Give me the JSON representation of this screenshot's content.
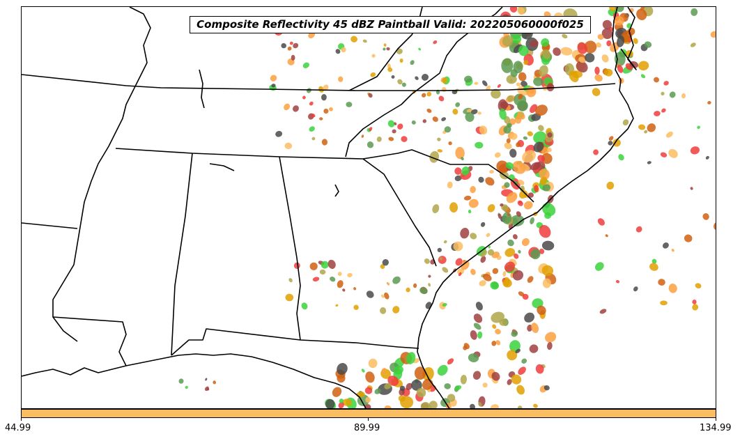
{
  "title": "Composite Reflectivity 45 dBZ Paintball Valid: 202205060000f025",
  "colorbar": {
    "color": "#fbbd61",
    "tick_labels": [
      "44.99",
      "89.99",
      "134.99"
    ]
  },
  "ensemble_colors": [
    "#f03c3c",
    "#3cd23c",
    "#fba040",
    "#fbbd61",
    "#a04040",
    "#4a4a4a",
    "#b0a64a",
    "#5b9a50",
    "#e0a000",
    "#d06010"
  ]
}
